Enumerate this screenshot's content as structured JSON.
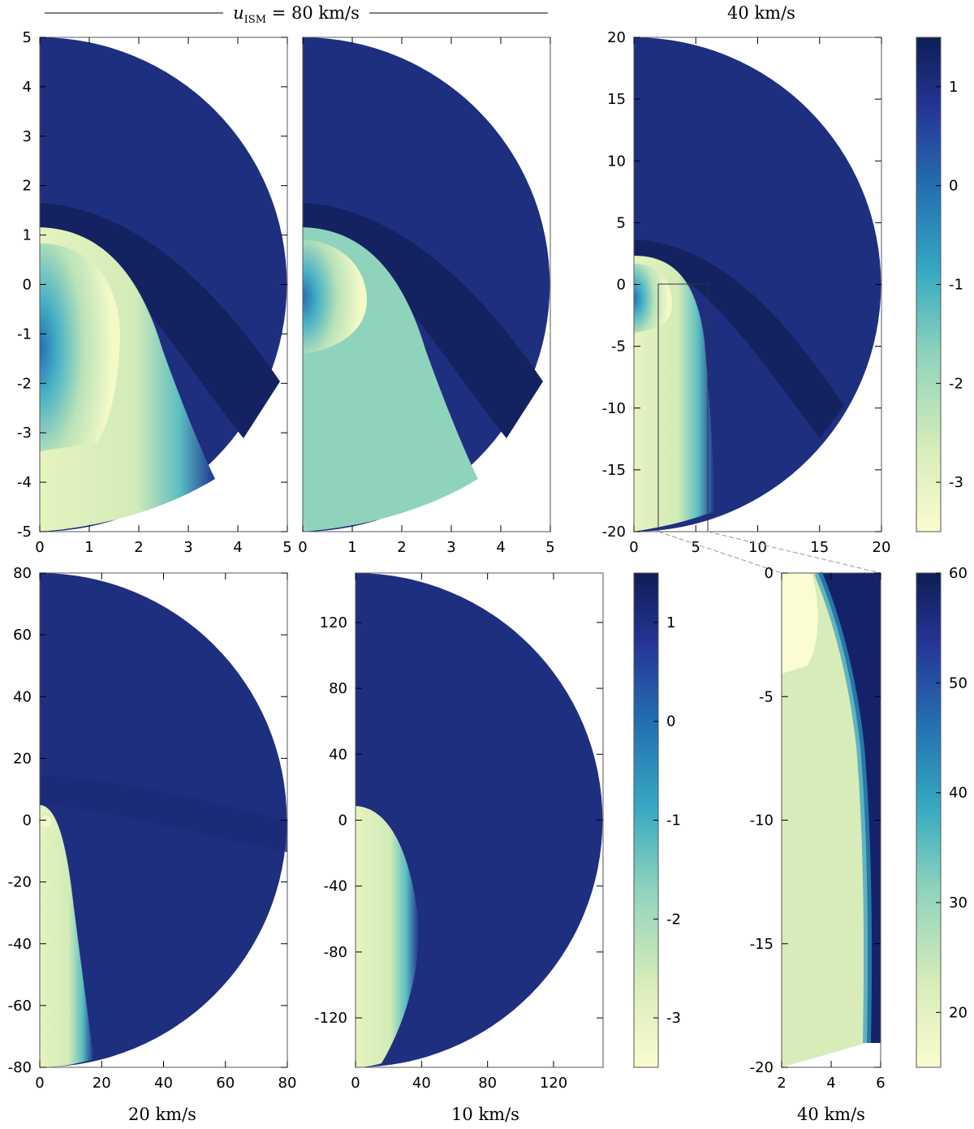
{
  "figure": {
    "header_left": "u_ISM = 80 km/s",
    "header_var": "u",
    "header_sub": "ISM",
    "header_rest": " = 80 km/s",
    "header_right": "40 km/s"
  },
  "colors": {
    "light": "#fbfcd0",
    "yellowgreen": "#d8ecba",
    "mint": "#8fd3bd",
    "teal": "#2f9dc2",
    "blue": "#2a55a3",
    "navy": "#1d2d7e",
    "darknavy": "#0f1e55"
  },
  "chart_data": [
    {
      "type": "heatmap",
      "id": "p1",
      "title": "",
      "xlim": [
        0,
        5
      ],
      "ylim": [
        -5,
        5
      ],
      "xticks": [
        0,
        1,
        2,
        3,
        4,
        5
      ],
      "yticks": [
        -5,
        -4,
        -3,
        -2,
        -1,
        0,
        1,
        2,
        3,
        4,
        5
      ],
      "xticklabels": [
        "0",
        "1",
        "2",
        "3",
        "4",
        "5"
      ],
      "yticklabels": [
        "-5",
        "-4",
        "-3",
        "-2",
        "-1",
        "0",
        "1",
        "2",
        "3",
        "4",
        "5"
      ],
      "domain_radius": 5,
      "outer_shell_radius": 1.65,
      "inner_bubble": {
        "apex": 1.2,
        "width_at_bottom": 2.8
      },
      "ism_speed": "80 km/s"
    },
    {
      "type": "heatmap",
      "id": "p2",
      "title": "",
      "xlim": [
        0,
        5
      ],
      "ylim": [
        -5,
        5
      ],
      "xticks": [
        0,
        1,
        2,
        3,
        4,
        5
      ],
      "xticklabels": [
        "0",
        "1",
        "2",
        "3",
        "4",
        "5"
      ],
      "domain_radius": 5,
      "outer_shell_radius": 1.65,
      "inner_bubble": {
        "apex": 1.2,
        "width_at_bottom": 2.8
      },
      "ism_speed": "80 km/s"
    },
    {
      "type": "heatmap",
      "id": "p3",
      "title": "",
      "xlim": [
        0,
        20
      ],
      "ylim": [
        -20,
        20
      ],
      "xticks": [
        0,
        5,
        10,
        15,
        20
      ],
      "yticks": [
        -20,
        -15,
        -10,
        -5,
        0,
        5,
        10,
        15,
        20
      ],
      "xticklabels": [
        "0",
        "5",
        "10",
        "15",
        "20"
      ],
      "yticklabels": [
        "-20",
        "-15",
        "-10",
        "-5",
        "0",
        "5",
        "10",
        "15",
        "20"
      ],
      "domain_radius": 20,
      "zoom_box": {
        "x": [
          2,
          6
        ],
        "y": [
          -20,
          0
        ]
      },
      "ism_speed": "40 km/s"
    },
    {
      "type": "heatmap",
      "id": "p4",
      "title": "",
      "label": "20 km/s",
      "xlim": [
        0,
        80
      ],
      "ylim": [
        -80,
        80
      ],
      "xticks": [
        0,
        20,
        40,
        60,
        80
      ],
      "yticks": [
        -80,
        -60,
        -40,
        -20,
        0,
        20,
        40,
        60,
        80
      ],
      "xticklabels": [
        "0",
        "20",
        "40",
        "60",
        "80"
      ],
      "yticklabels": [
        "-80",
        "-60",
        "-40",
        "-20",
        "0",
        "20",
        "40",
        "60",
        "80"
      ],
      "domain_radius": 80,
      "ism_speed": "20 km/s"
    },
    {
      "type": "heatmap",
      "id": "p5",
      "title": "",
      "label": "10 km/s",
      "xlim": [
        0,
        150
      ],
      "ylim": [
        -150,
        150
      ],
      "xticks": [
        0,
        40,
        80,
        120
      ],
      "yticks": [
        -120,
        -80,
        -40,
        0,
        40,
        80,
        120
      ],
      "xticklabels": [
        "0",
        "40",
        "80",
        "120"
      ],
      "yticklabels": [
        "-120",
        "-80",
        "-40",
        "0",
        "40",
        "80",
        "120"
      ],
      "domain_radius": 150,
      "ism_speed": "10 km/s"
    },
    {
      "type": "heatmap",
      "id": "p6",
      "title": "",
      "label": "40 km/s",
      "xlim": [
        2,
        6
      ],
      "ylim": [
        -20,
        0
      ],
      "xticks": [
        2,
        4,
        6
      ],
      "yticks": [
        -20,
        -15,
        -10,
        -5,
        0
      ],
      "xticklabels": [
        "2",
        "4",
        "6"
      ],
      "yticklabels": [
        "-20",
        "-15",
        "-10",
        "-5",
        "0"
      ],
      "ism_speed": "40 km/s"
    }
  ],
  "colorbars": [
    {
      "id": "cb_top",
      "range": [
        -3.5,
        1.5
      ],
      "ticks": [
        -3,
        -2,
        -1,
        0,
        1
      ],
      "ticklabels": [
        "-3",
        "-2",
        "-1",
        "0",
        "1"
      ]
    },
    {
      "id": "cb_mid",
      "range": [
        -3.5,
        1.5
      ],
      "ticks": [
        -3,
        -2,
        -1,
        0,
        1
      ],
      "ticklabels": [
        "-3",
        "-2",
        "-1",
        "0",
        "1"
      ]
    },
    {
      "id": "cb_right",
      "range": [
        15,
        60
      ],
      "ticks": [
        20,
        30,
        40,
        50,
        60
      ],
      "ticklabels": [
        "20",
        "30",
        "40",
        "50",
        "60"
      ]
    }
  ],
  "labels": {
    "bottom_left": "20 km/s",
    "bottom_mid": "10 km/s",
    "bottom_right": "40 km/s"
  }
}
